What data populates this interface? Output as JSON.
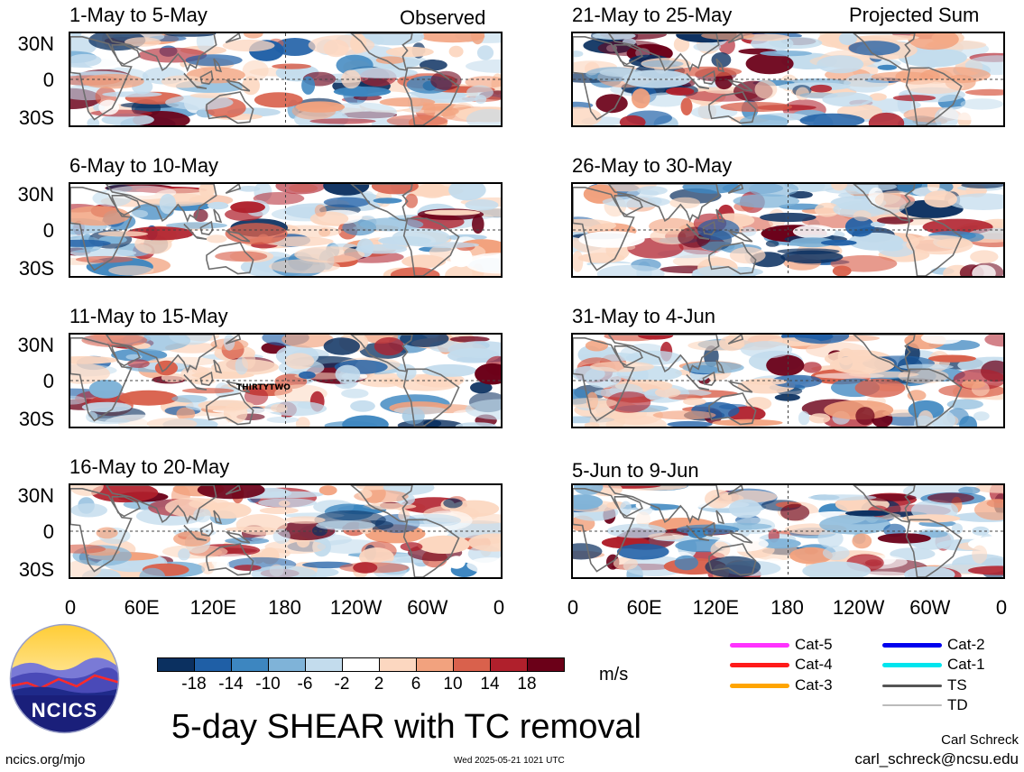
{
  "panels": [
    {
      "title": "1-May to 5-May",
      "tag": "Observed"
    },
    {
      "title": "21-May to 25-May",
      "tag": "Projected Sum"
    },
    {
      "title": "6-May to 10-May",
      "tag": ""
    },
    {
      "title": "26-May to 30-May",
      "tag": ""
    },
    {
      "title": "11-May to 15-May",
      "tag": "",
      "storm_label": "THIRTYTWO"
    },
    {
      "title": "31-May to 4-Jun",
      "tag": ""
    },
    {
      "title": "16-May to 20-May",
      "tag": ""
    },
    {
      "title": "5-Jun to 9-Jun",
      "tag": ""
    }
  ],
  "y_ticks": [
    "30N",
    "0",
    "30S"
  ],
  "x_ticks": [
    "0",
    "60E",
    "120E",
    "180",
    "120W",
    "60W",
    "0"
  ],
  "colorbar": {
    "colors": [
      "#0b3060",
      "#1f5fa6",
      "#3d86c0",
      "#7fb3d8",
      "#c3dced",
      "#ffffff",
      "#fcd7c0",
      "#f2a27e",
      "#d9614c",
      "#b0202c",
      "#6b0018"
    ],
    "labels": [
      "-18",
      "-14",
      "-10",
      "-6",
      "-2",
      "2",
      "6",
      "10",
      "14",
      "18"
    ],
    "units": "m/s"
  },
  "legend": [
    {
      "label": "Cat-5",
      "color": "#ff33ff"
    },
    {
      "label": "Cat-4",
      "color": "#ff1a1a"
    },
    {
      "label": "Cat-3",
      "color": "#ffa500"
    },
    {
      "label": "Cat-2",
      "color": "#0000ee"
    },
    {
      "label": "Cat-1",
      "color": "#00e5ee"
    },
    {
      "label": "TS",
      "color": "#555555"
    },
    {
      "label": "TD",
      "color": "#bbbbbb"
    }
  ],
  "logo_text": "NCICS",
  "main_title": "5-day SHEAR with TC removal",
  "author": "Carl Schreck",
  "email": "carl_schreck@ncsu.edu",
  "site": "ncics.org/mjo",
  "timestamp": "Wed 2025-05-21 1021 UTC"
}
